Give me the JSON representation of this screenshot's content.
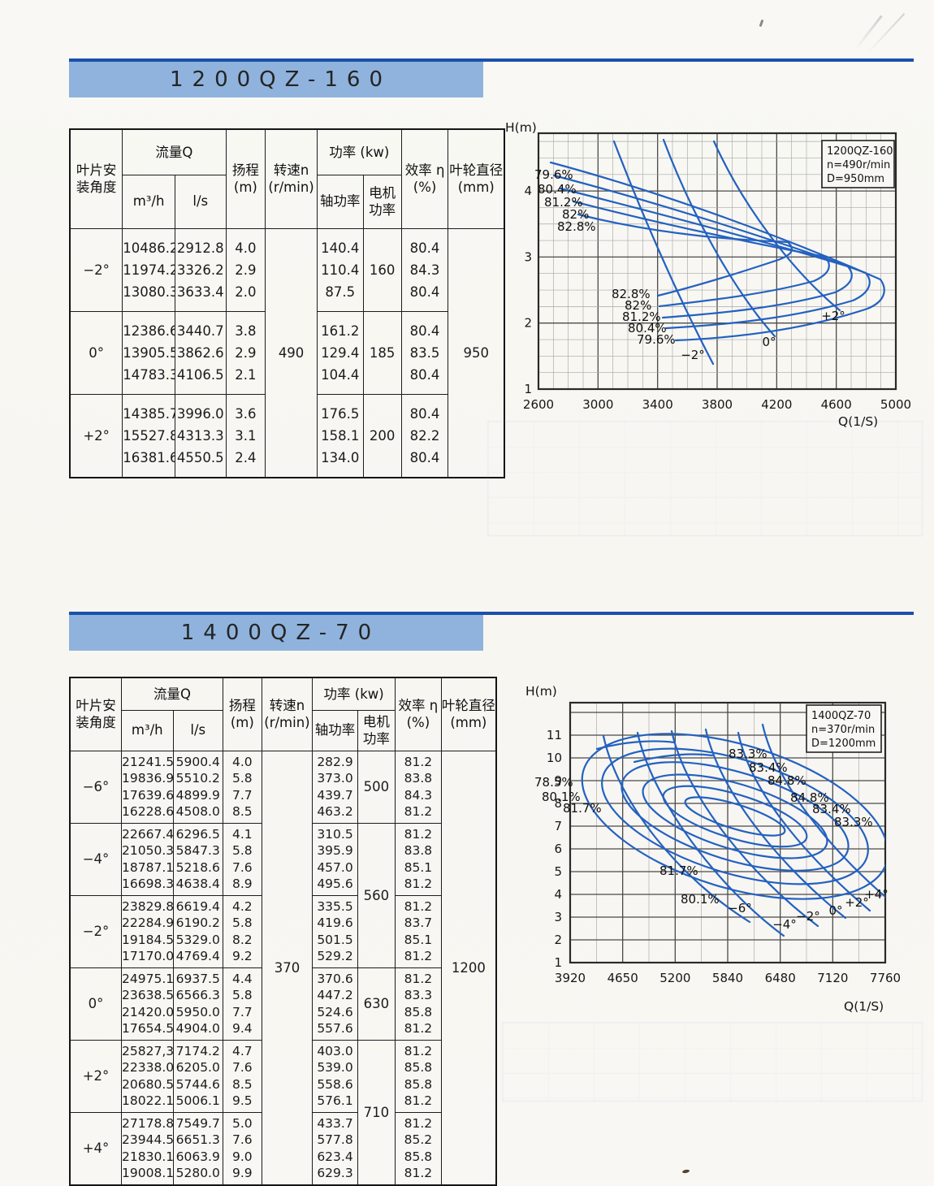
{
  "page": {
    "background": "#f8f7f3",
    "ink": "#1b1b1b",
    "curve_blue": "#2361c1",
    "band_blue": "#8fb3dc",
    "stripe_blue": "#1b50ac"
  },
  "table_header": {
    "angle": [
      "叶片安",
      "装角度"
    ],
    "flow": "流量Q",
    "m3h": "m³/h",
    "ls": "l/s",
    "head": [
      "扬程",
      "(m)"
    ],
    "speed": [
      "转速n",
      "(r/min)"
    ],
    "power": "功率 (kw)",
    "shaft": "轴功率",
    "motor": [
      "电机",
      "功率"
    ],
    "eff": [
      "效率 η",
      "(%)"
    ],
    "dia": [
      "叶轮直径",
      "(mm)"
    ]
  },
  "sections": [
    {
      "title": "1200QZ-160",
      "table": {
        "speed": "490",
        "diameter": "950",
        "motor": [
          {
            "group": 0,
            "span": 1,
            "value": "160"
          },
          {
            "group": 1,
            "span": 1,
            "value": "185"
          },
          {
            "group": 2,
            "span": 1,
            "value": "200"
          }
        ],
        "groups": [
          {
            "angle": "−2°",
            "m3h": [
              "10486.2",
              "11974.2",
              "13080.3"
            ],
            "ls": [
              "2912.8",
              "3326.2",
              "3633.4"
            ],
            "head": [
              "4.0",
              "2.9",
              "2.0"
            ],
            "shaft": [
              "140.4",
              "110.4",
              "87.5"
            ],
            "eff": [
              "80.4",
              "84.3",
              "80.4"
            ]
          },
          {
            "angle": "0°",
            "m3h": [
              "12386.6",
              "13905.5",
              "14783.3"
            ],
            "ls": [
              "3440.7",
              "3862.6",
              "4106.5"
            ],
            "head": [
              "3.8",
              "2.9",
              "2.1"
            ],
            "shaft": [
              "161.2",
              "129.4",
              "104.4"
            ],
            "eff": [
              "80.4",
              "83.5",
              "80.4"
            ]
          },
          {
            "angle": "+2°",
            "m3h": [
              "14385.7",
              "15527.8",
              "16381.6"
            ],
            "ls": [
              "3996.0",
              "4313.3",
              "4550.5"
            ],
            "head": [
              "3.6",
              "3.1",
              "2.4"
            ],
            "shaft": [
              "176.5",
              "158.1",
              "134.0"
            ],
            "eff": [
              "80.4",
              "82.2",
              "80.4"
            ]
          }
        ]
      }
    },
    {
      "title": "1400QZ-70",
      "table": {
        "speed": "370",
        "diameter": "1200",
        "motor": [
          {
            "group": 0,
            "span": 1,
            "value": "500"
          },
          {
            "group": 1,
            "span": 2,
            "value": "560"
          },
          {
            "group": 3,
            "span": 1,
            "value": "630"
          },
          {
            "group": 4,
            "span": 2,
            "value": "710"
          }
        ],
        "groups": [
          {
            "angle": "−6°",
            "m3h": [
              "21241.5",
              "19836.9",
              "17639.6",
              "16228.6"
            ],
            "ls": [
              "5900.4",
              "5510.2",
              "4899.9",
              "4508.0"
            ],
            "head": [
              "4.0",
              "5.8",
              "7.7",
              "8.5"
            ],
            "shaft": [
              "282.9",
              "373.0",
              "439.7",
              "463.2"
            ],
            "eff": [
              "81.2",
              "83.8",
              "84.3",
              "81.2"
            ]
          },
          {
            "angle": "−4°",
            "m3h": [
              "22667.4",
              "21050.3",
              "18787.1",
              "16698.3"
            ],
            "ls": [
              "6296.5",
              "5847.3",
              "5218.6",
              "4638.4"
            ],
            "head": [
              "4.1",
              "5.8",
              "7.6",
              "8.9"
            ],
            "shaft": [
              "310.5",
              "395.9",
              "457.0",
              "495.6"
            ],
            "eff": [
              "81.2",
              "83.8",
              "85.1",
              "81.2"
            ]
          },
          {
            "angle": "−2°",
            "m3h": [
              "23829.8",
              "22284.9",
              "19184.5",
              "17170.0"
            ],
            "ls": [
              "6619.4",
              "6190.2",
              "5329.0",
              "4769.4"
            ],
            "head": [
              "4.2",
              "5.8",
              "8.2",
              "9.2"
            ],
            "shaft": [
              "335.5",
              "419.6",
              "501.5",
              "529.2"
            ],
            "eff": [
              "81.2",
              "83.7",
              "85.1",
              "81.2"
            ]
          },
          {
            "angle": "0°",
            "m3h": [
              "24975.1",
              "23638.5",
              "21420.0",
              "17654.5"
            ],
            "ls": [
              "6937.5",
              "6566.3",
              "5950.0",
              "4904.0"
            ],
            "head": [
              "4.4",
              "5.8",
              "7.7",
              "9.4"
            ],
            "shaft": [
              "370.6",
              "447.2",
              "524.6",
              "557.6"
            ],
            "eff": [
              "81.2",
              "83.3",
              "85.8",
              "81.2"
            ]
          },
          {
            "angle": "+2°",
            "m3h": [
              "25827,3",
              "22338.0",
              "20680.5",
              "18022.1"
            ],
            "ls": [
              "7174.2",
              "6205.0",
              "5744.6",
              "5006.1"
            ],
            "head": [
              "4.7",
              "7.6",
              "8.5",
              "9.5"
            ],
            "shaft": [
              "403.0",
              "539.0",
              "558.6",
              "576.1"
            ],
            "eff": [
              "81.2",
              "85.8",
              "85.8",
              "81.2"
            ]
          },
          {
            "angle": "+4°",
            "m3h": [
              "27178.8",
              "23944.5",
              "21830.1",
              "19008.1"
            ],
            "ls": [
              "7549.7",
              "6651.3",
              "6063.9",
              "5280.0"
            ],
            "head": [
              "5.0",
              "7.6",
              "9.0",
              "9.9"
            ],
            "shaft": [
              "433.7",
              "577.8",
              "623.4",
              "629.3"
            ],
            "eff": [
              "81.2",
              "85.2",
              "85.8",
              "81.2"
            ]
          }
        ]
      }
    }
  ],
  "chart_data": [
    {
      "type": "line",
      "pump": "1200QZ-160",
      "info_box": [
        "1200QZ-160",
        "n=490r/min",
        "D=950mm"
      ],
      "ylabel": "H(m)",
      "xlabel": "Q(1/S)",
      "x_ticks": [
        "2600",
        "3000",
        "3400",
        "3800",
        "4200",
        "4600",
        "5000"
      ],
      "y_ticks": [
        "4",
        "3",
        "2",
        "1"
      ],
      "xlim": [
        2600,
        5000
      ],
      "ylim": [
        1,
        4.9
      ],
      "grid": "on",
      "x_unit": "l/s",
      "y_unit": "m",
      "series": [
        {
          "name": "−2°",
          "x": [
            2912.8,
            3326.2,
            3633.4
          ],
          "y": [
            4.0,
            2.9,
            2.0
          ]
        },
        {
          "name": "0°",
          "x": [
            3440.7,
            3862.6,
            4106.5
          ],
          "y": [
            3.8,
            2.9,
            2.1
          ]
        },
        {
          "name": "+2°",
          "x": [
            3996.0,
            4313.3,
            4550.5
          ],
          "y": [
            3.6,
            3.1,
            2.4
          ]
        }
      ],
      "angle_labels": [
        "−2°",
        "0°",
        "+2°"
      ],
      "efficiency_contours_percent": [
        79.6,
        80.4,
        81.2,
        82,
        82.8
      ],
      "efficiency_labels_upper": [
        "79.6%",
        "80.4%",
        "81.2%",
        "82%",
        "82.8%"
      ],
      "efficiency_labels_lower": [
        "82.8%",
        "82%",
        "81.2%",
        "80.4%",
        "79.6%"
      ]
    },
    {
      "type": "line",
      "pump": "1400QZ-70",
      "info_box": [
        "1400QZ-70",
        "n=370r/min",
        "D=1200mm"
      ],
      "ylabel": "H(m)",
      "xlabel": "Q(1/S)",
      "x_ticks": [
        "3920",
        "4650",
        "5200",
        "5840",
        "6480",
        "7120",
        "7760"
      ],
      "y_ticks": [
        "11",
        "10",
        "9",
        "8",
        "7",
        "6",
        "5",
        "4",
        "3",
        "2",
        "1"
      ],
      "xlim": [
        3920,
        7760
      ],
      "ylim": [
        1,
        12.4
      ],
      "grid": "on",
      "x_unit": "l/s",
      "y_unit": "m",
      "series": [
        {
          "name": "−6°",
          "x": [
            5900.4,
            5510.2,
            4899.9,
            4508.0
          ],
          "y": [
            4.0,
            5.8,
            7.7,
            8.5
          ]
        },
        {
          "name": "−4°",
          "x": [
            6296.5,
            5847.3,
            5218.6,
            4638.4
          ],
          "y": [
            4.1,
            5.8,
            7.6,
            8.9
          ]
        },
        {
          "name": "−2°",
          "x": [
            6619.4,
            6190.2,
            5329.0,
            4769.4
          ],
          "y": [
            4.2,
            5.8,
            8.2,
            9.2
          ]
        },
        {
          "name": "0°",
          "x": [
            6937.5,
            6566.3,
            5950.0,
            4904.0
          ],
          "y": [
            4.4,
            5.8,
            7.7,
            9.4
          ]
        },
        {
          "name": "+2°",
          "x": [
            7174.2,
            6205.0,
            5744.6,
            5006.1
          ],
          "y": [
            4.7,
            7.6,
            8.5,
            9.5
          ]
        },
        {
          "name": "+4°",
          "x": [
            7549.7,
            6651.3,
            6063.9,
            5280.0
          ],
          "y": [
            5.0,
            7.6,
            9.0,
            9.9
          ]
        }
      ],
      "angle_labels": [
        "−6°",
        "−4°",
        "−2°",
        "0°",
        "+2°",
        "+4°"
      ],
      "efficiency_contours_percent": [
        78.5,
        80.1,
        81.7,
        83.3,
        83.4,
        84.8
      ],
      "efficiency_labels_left": [
        "78.5%",
        "80.1%",
        "81.7%"
      ],
      "efficiency_labels_top": [
        "83.3%",
        "83.4%",
        "84.8%"
      ],
      "efficiency_labels_right": [
        "84.8%",
        "83.4%",
        "83.3%"
      ],
      "efficiency_labels_lower": [
        "81.7%",
        "80.1%"
      ]
    }
  ]
}
